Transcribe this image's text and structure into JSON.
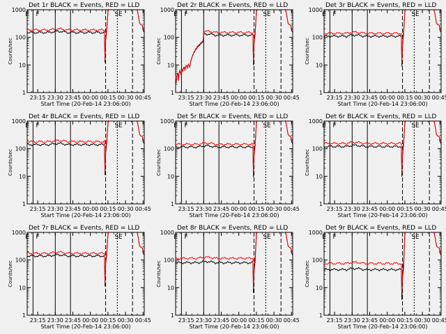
{
  "chart_data": [
    {
      "type": "line",
      "title": "Det 1r BLACK = Events, RED = LLD",
      "xlabel": "Start Time (20-Feb-14 23:06:00)",
      "ylabel": "Counts/sec",
      "yscale": "log",
      "ylim": [
        1,
        1000
      ],
      "xlim": [
        "23:06",
        "00:46"
      ],
      "xticks": [
        "23:15",
        "23:30",
        "23:45",
        "00:00",
        "00:15",
        "00:30",
        "00:45"
      ],
      "yticks": [
        "1",
        "10",
        "100",
        "1000"
      ],
      "markers": [
        "E",
        "F",
        "SE"
      ],
      "series": [
        {
          "color": "#000000",
          "base": 150,
          "early_rise": false
        },
        {
          "color": "#ff0000",
          "base": 185,
          "early_rise": false
        }
      ]
    },
    {
      "type": "line",
      "title": "Det 2r BLACK = Events, RED = LLD",
      "xlabel": "Start Time (20-Feb-14 23:06:00)",
      "ylabel": "Counts/sec",
      "yscale": "log",
      "ylim": [
        1,
        1000
      ],
      "xlim": [
        "23:06",
        "00:46"
      ],
      "xticks": [
        "23:15",
        "23:30",
        "23:45",
        "00:00",
        "00:15",
        "00:30",
        "00:45"
      ],
      "yticks": [
        "1",
        "10",
        "100",
        "1000"
      ],
      "markers": [
        "E",
        "F",
        "SE"
      ],
      "series": [
        {
          "color": "#000000",
          "base": 120,
          "early_rise": true
        },
        {
          "color": "#ff0000",
          "base": 150,
          "early_rise": true
        }
      ]
    },
    {
      "type": "line",
      "title": "Det 3r BLACK = Events, RED = LLD",
      "xlabel": "Start Time (20-Feb-14 23:06:00)",
      "ylabel": "Counts/sec",
      "yscale": "log",
      "ylim": [
        1,
        1000
      ],
      "xlim": [
        "23:06",
        "00:46"
      ],
      "xticks": [
        "23:15",
        "23:30",
        "23:45",
        "00:00",
        "00:15",
        "00:30",
        "00:45"
      ],
      "yticks": [
        "1",
        "10",
        "100",
        "1000"
      ],
      "markers": [
        "E",
        "F",
        "SE"
      ],
      "series": [
        {
          "color": "#000000",
          "base": 110,
          "early_rise": false
        },
        {
          "color": "#ff0000",
          "base": 140,
          "early_rise": false
        }
      ]
    },
    {
      "type": "line",
      "title": "Det 4r BLACK = Events, RED = LLD",
      "xlabel": "Start Time (20-Feb-14 23:06:00)",
      "ylabel": "Counts/sec",
      "yscale": "log",
      "ylim": [
        1,
        1000
      ],
      "xlim": [
        "23:06",
        "00:46"
      ],
      "xticks": [
        "23:15",
        "23:30",
        "23:45",
        "00:00",
        "00:15",
        "00:30",
        "00:45"
      ],
      "yticks": [
        "1",
        "10",
        "100",
        "1000"
      ],
      "markers": [
        "E",
        "F",
        "SE"
      ],
      "series": [
        {
          "color": "#000000",
          "base": 140,
          "early_rise": false
        },
        {
          "color": "#ff0000",
          "base": 180,
          "early_rise": false
        }
      ]
    },
    {
      "type": "line",
      "title": "Det 5r BLACK = Events, RED = LLD",
      "xlabel": "Start Time (20-Feb-14 23:06:00)",
      "ylabel": "Counts/sec",
      "yscale": "log",
      "ylim": [
        1,
        1000
      ],
      "xlim": [
        "23:06",
        "00:46"
      ],
      "xticks": [
        "23:15",
        "23:30",
        "23:45",
        "00:00",
        "00:15",
        "00:30",
        "00:45"
      ],
      "yticks": [
        "1",
        "10",
        "100",
        "1000"
      ],
      "markers": [
        "E",
        "F",
        "SE"
      ],
      "series": [
        {
          "color": "#000000",
          "base": 115,
          "early_rise": false
        },
        {
          "color": "#ff0000",
          "base": 145,
          "early_rise": false
        }
      ]
    },
    {
      "type": "line",
      "title": "Det 6r BLACK = Events, RED = LLD",
      "xlabel": "Start Time (20-Feb-14 23:06:00)",
      "ylabel": "Counts/sec",
      "yscale": "log",
      "ylim": [
        1,
        1000
      ],
      "xlim": [
        "23:06",
        "00:46"
      ],
      "xticks": [
        "23:15",
        "23:30",
        "23:45",
        "00:00",
        "00:15",
        "00:30",
        "00:45"
      ],
      "yticks": [
        "1",
        "10",
        "100",
        "1000"
      ],
      "markers": [
        "E",
        "F",
        "SE"
      ],
      "series": [
        {
          "color": "#000000",
          "base": 120,
          "early_rise": false
        },
        {
          "color": "#ff0000",
          "base": 155,
          "early_rise": false
        }
      ]
    },
    {
      "type": "line",
      "title": "Det 7r BLACK = Events, RED = LLD",
      "xlabel": "Start Time (20-Feb-14 23:06:00)",
      "ylabel": "Counts/sec",
      "yscale": "log",
      "ylim": [
        1,
        1000
      ],
      "xlim": [
        "23:06",
        "00:46"
      ],
      "xticks": [
        "23:15",
        "23:30",
        "23:45",
        "00:00",
        "00:15",
        "00:30",
        "00:45"
      ],
      "yticks": [
        "1",
        "10",
        "100",
        "1000"
      ],
      "markers": [
        "E",
        "F",
        "SE"
      ],
      "series": [
        {
          "color": "#000000",
          "base": 140,
          "early_rise": false
        },
        {
          "color": "#ff0000",
          "base": 175,
          "early_rise": false
        }
      ]
    },
    {
      "type": "line",
      "title": "Det 8r BLACK = Events, RED = LLD",
      "xlabel": "Start Time (20-Feb-14 23:06:00)",
      "ylabel": "Counts/sec",
      "yscale": "log",
      "ylim": [
        1,
        1000
      ],
      "xlim": [
        "23:06",
        "00:46"
      ],
      "xticks": [
        "23:15",
        "23:30",
        "23:45",
        "00:00",
        "00:15",
        "00:30",
        "00:45"
      ],
      "yticks": [
        "1",
        "10",
        "100",
        "1000"
      ],
      "markers": [
        "E",
        "F",
        "SE"
      ],
      "series": [
        {
          "color": "#000000",
          "base": 80,
          "early_rise": false
        },
        {
          "color": "#ff0000",
          "base": 115,
          "early_rise": false
        }
      ]
    },
    {
      "type": "line",
      "title": "Det 9r BLACK = Events, RED = LLD",
      "xlabel": "Start Time (20-Feb-14 23:06:00)",
      "ylabel": "Counts/sec",
      "yscale": "log",
      "ylim": [
        1,
        1000
      ],
      "xlim": [
        "23:06",
        "00:46"
      ],
      "xticks": [
        "23:15",
        "23:30",
        "23:45",
        "00:00",
        "00:15",
        "00:30",
        "00:45"
      ],
      "yticks": [
        "1",
        "10",
        "100",
        "1000"
      ],
      "markers": [
        "E",
        "F",
        "SE"
      ],
      "series": [
        {
          "color": "#000000",
          "base": 45,
          "early_rise": false
        },
        {
          "color": "#ff0000",
          "base": 75,
          "early_rise": false
        }
      ]
    }
  ]
}
